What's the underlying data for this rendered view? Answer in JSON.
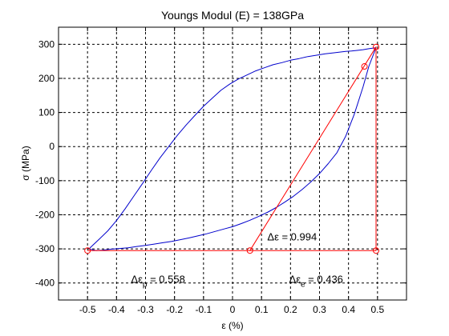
{
  "chart_data": {
    "type": "line",
    "title": "Youngs Modul (E) = 138GPa",
    "xlabel": "ε (%)",
    "ylabel": "σ (MPa)",
    "xlim": [
      -0.6,
      0.6
    ],
    "ylim": [
      -450,
      350
    ],
    "xticks": [
      -0.5,
      -0.4,
      -0.3,
      -0.2,
      -0.1,
      0,
      0.1,
      0.2,
      0.3,
      0.4,
      0.5
    ],
    "xtick_labels": [
      "-0.5",
      "-0.4",
      "-0.3",
      "-0.2",
      "-0.1",
      "0",
      "0.1",
      "0.2",
      "0.3",
      "0.4",
      "0.5"
    ],
    "yticks": [
      -400,
      -300,
      -200,
      -100,
      0,
      100,
      200,
      300
    ],
    "ytick_labels": [
      "-400",
      "-300",
      "-200",
      "-100",
      "0",
      "100",
      "200",
      "300"
    ],
    "grid": true,
    "grid_style": "dashed",
    "colors": {
      "hysteresis": "#0000cc",
      "construction": "#ff0000",
      "axes": "#000000"
    },
    "series": [
      {
        "role": "hysteresis-loop",
        "color": "#0000cc",
        "x": [
          0.495,
          0.47,
          0.45,
          0.43,
          0.41,
          0.39,
          0.37,
          0.35,
          0.32,
          0.29,
          0.26,
          0.23,
          0.2,
          0.17,
          0.14,
          0.11,
          0.08,
          0.05,
          0.02,
          -0.01,
          -0.04,
          -0.07,
          -0.1,
          -0.13,
          -0.16,
          -0.19,
          -0.22,
          -0.25,
          -0.28,
          -0.31,
          -0.34,
          -0.37,
          -0.4,
          -0.43,
          -0.46,
          -0.48,
          -0.495
        ],
        "y": [
          290,
          287,
          284,
          282,
          280,
          279,
          277,
          275,
          272,
          268,
          264,
          258,
          253,
          246,
          240,
          231,
          222,
          210,
          198,
          183,
          165,
          142,
          118,
          91,
          63,
          33,
          0,
          -33,
          -70,
          -108,
          -145,
          -182,
          -217,
          -247,
          -272,
          -288,
          -300
        ]
      },
      {
        "role": "hysteresis-loop",
        "color": "#0000cc",
        "x": [
          -0.495,
          -0.47,
          -0.45,
          -0.42,
          -0.39,
          -0.36,
          -0.33,
          -0.3,
          -0.27,
          -0.24,
          -0.21,
          -0.18,
          -0.15,
          -0.12,
          -0.09,
          -0.06,
          -0.03,
          0.0,
          0.03,
          0.06,
          0.09,
          0.12,
          0.15,
          0.18,
          0.21,
          0.24,
          0.27,
          0.3,
          0.33,
          0.36,
          0.39,
          0.42,
          0.45,
          0.47,
          0.495
        ],
        "y": [
          -300,
          -305,
          -304,
          -301,
          -299,
          -297,
          -293,
          -290,
          -286,
          -282,
          -278,
          -273,
          -268,
          -262,
          -256,
          -249,
          -242,
          -235,
          -226,
          -216,
          -205,
          -193,
          -179,
          -163,
          -146,
          -126,
          -104,
          -79,
          -50,
          -18,
          30,
          95,
          175,
          235,
          290
        ]
      },
      {
        "role": "construction-lines",
        "color": "#ff0000",
        "x": [
          -0.5,
          0.06,
          0.495,
          0.495,
          0.06
        ],
        "y": [
          -305,
          -305,
          -305,
          292,
          -305
        ]
      },
      {
        "role": "construction-markers",
        "color": "#ff0000",
        "points": [
          [
            -0.5,
            -305
          ],
          [
            0.06,
            -305
          ],
          [
            0.495,
            -305
          ],
          [
            0.495,
            292
          ],
          [
            0.455,
            235
          ]
        ]
      }
    ],
    "annotations": [
      {
        "text": "Δε = 0.994",
        "x": 0.12,
        "y": -275
      },
      {
        "text": "Δε",
        "sub": "p",
        "rest": " = 0.558",
        "x": -0.35,
        "y": -400
      },
      {
        "text": "Δε",
        "sub": "e",
        "rest": " = 0.436",
        "x": 0.195,
        "y": -400
      }
    ]
  }
}
